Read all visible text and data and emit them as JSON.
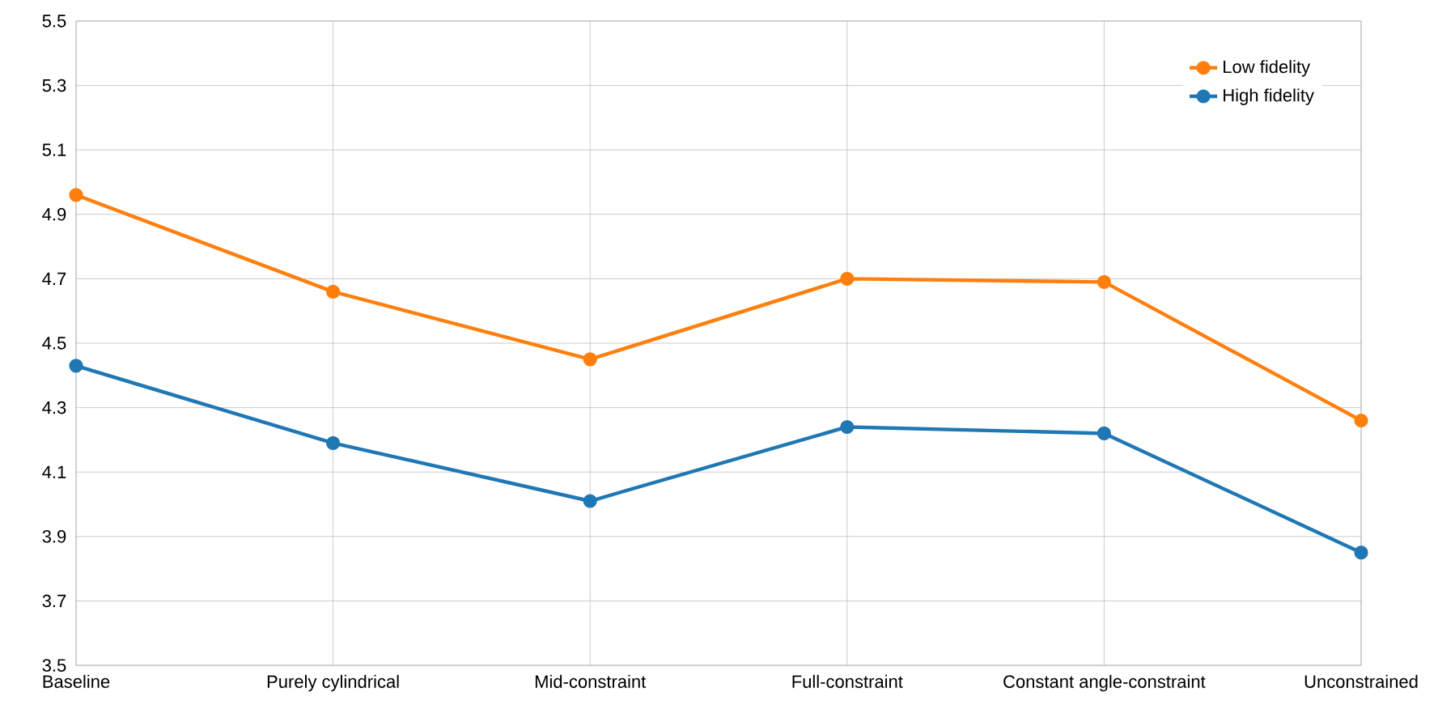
{
  "chart_data": {
    "type": "line",
    "categories": [
      "Baseline",
      "Purely cylindrical",
      "Mid-constraint",
      "Full-constraint",
      "Constant angle-constraint",
      "Unconstrained"
    ],
    "series": [
      {
        "name": "Low fidelity",
        "color": "#ff7f0e",
        "values": [
          4.96,
          4.66,
          4.45,
          4.7,
          4.69,
          4.26
        ]
      },
      {
        "name": "High fidelity",
        "color": "#1f77b4",
        "values": [
          4.43,
          4.19,
          4.01,
          4.24,
          4.22,
          3.85
        ]
      }
    ],
    "ylim": [
      3.5,
      5.5
    ],
    "yticks": [
      3.5,
      3.7,
      3.9,
      4.1,
      4.3,
      4.5,
      4.7,
      4.9,
      5.1,
      5.3,
      5.5
    ],
    "grid": true,
    "legend": "top right",
    "marker": "circle",
    "line_style": "solid"
  }
}
